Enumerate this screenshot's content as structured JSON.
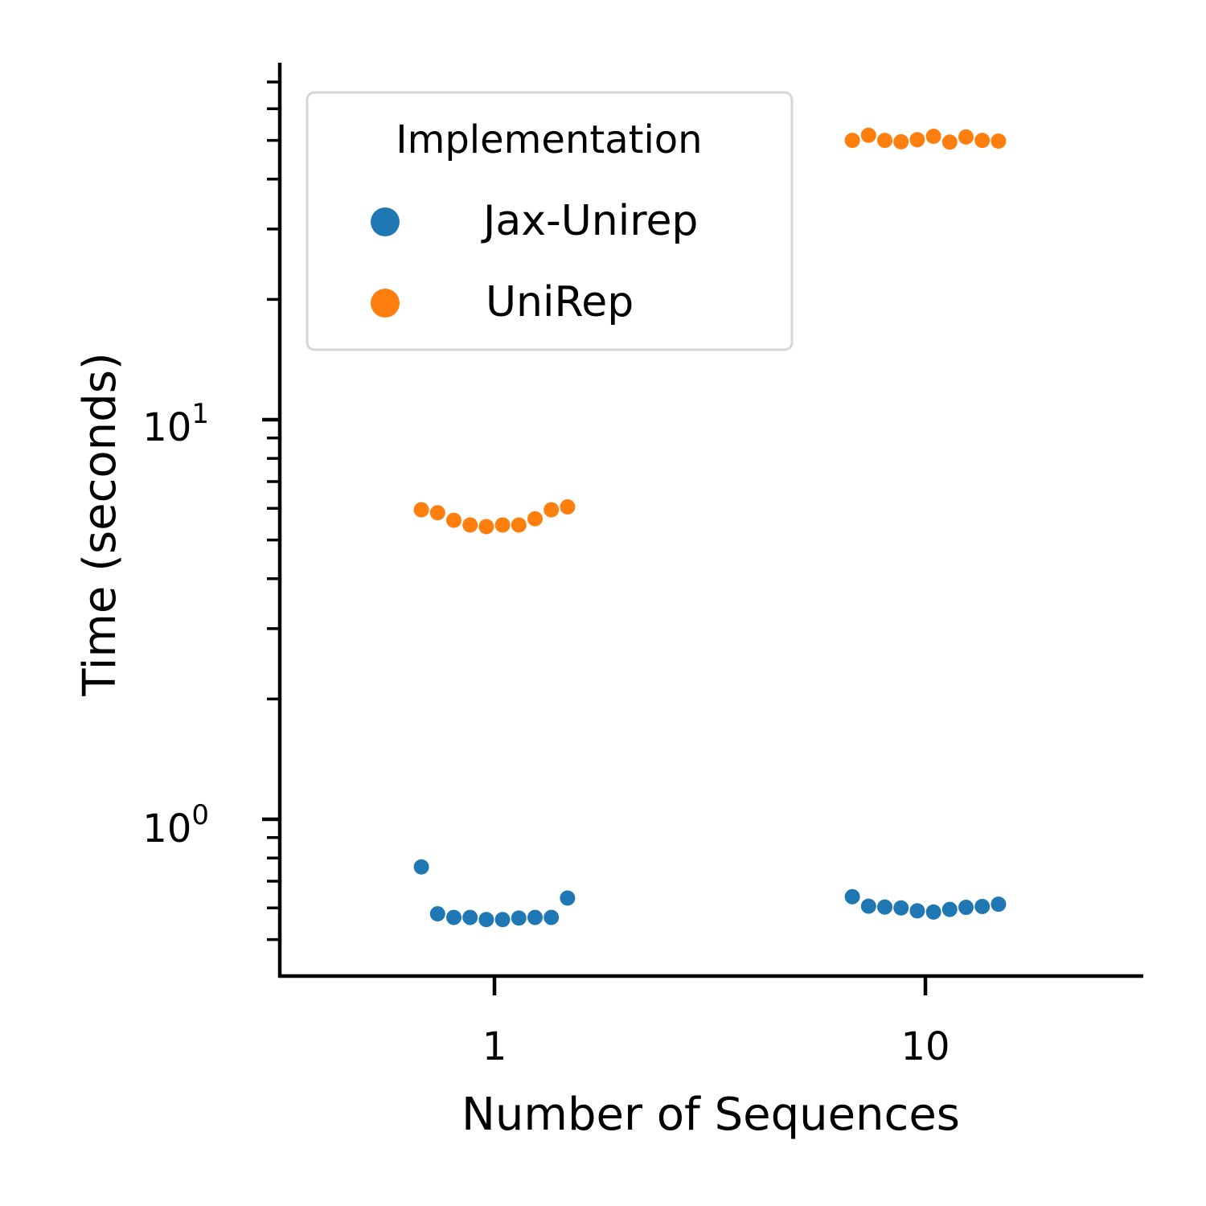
{
  "chart_data": {
    "type": "scatter",
    "xlabel": "Number of Sequences",
    "ylabel": "Time (seconds)",
    "y_scale": "log",
    "ylim": [
      0.48,
      70
    ],
    "categories": [
      "1",
      "10"
    ],
    "y_tick_labels": [
      {
        "value": 1,
        "base": "10",
        "exp": "0"
      },
      {
        "value": 10,
        "base": "10",
        "exp": "1"
      }
    ],
    "grid": false,
    "legend": {
      "title": "Implementation",
      "placement": "top-left"
    },
    "series": [
      {
        "name": "Jax-Unirep",
        "color": "#1f77b4",
        "points": [
          {
            "category": "1",
            "values": [
              0.76,
              0.58,
              0.568,
              0.568,
              0.561,
              0.561,
              0.566,
              0.568,
              0.568,
              0.635
            ]
          },
          {
            "category": "10",
            "values": [
              0.64,
              0.606,
              0.603,
              0.6,
              0.59,
              0.586,
              0.595,
              0.602,
              0.605,
              0.613
            ]
          }
        ]
      },
      {
        "name": "UniRep",
        "color": "#ff7f0e",
        "points": [
          {
            "category": "1",
            "values": [
              5.95,
              5.85,
              5.6,
              5.45,
              5.4,
              5.45,
              5.45,
              5.65,
              5.95,
              6.05
            ]
          },
          {
            "category": "10",
            "values": [
              50.0,
              51.5,
              50.0,
              49.6,
              50.2,
              51.2,
              49.5,
              51.0,
              50.0,
              49.8
            ]
          }
        ]
      }
    ]
  }
}
